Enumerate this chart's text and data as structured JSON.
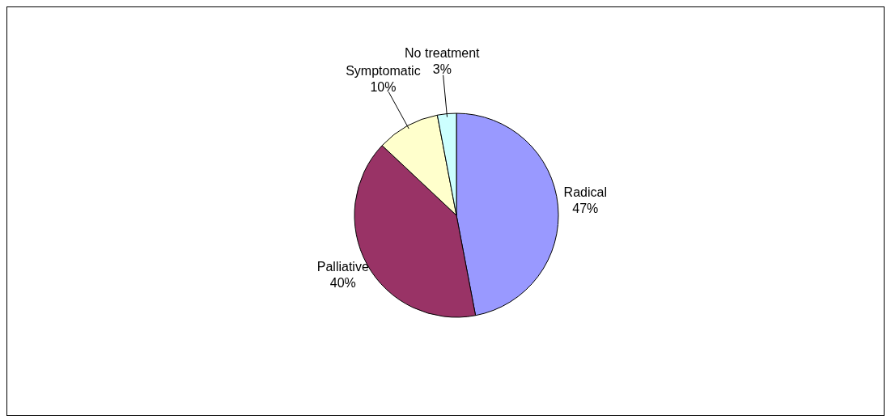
{
  "chart_data": {
    "type": "pie",
    "categories": [
      "Radical",
      "Palliative",
      "Symptomatic",
      "No treatment"
    ],
    "values": [
      47,
      40,
      10,
      3
    ],
    "value_labels": [
      "47%",
      "40%",
      "10%",
      "3%"
    ],
    "colors": [
      "#9999ff",
      "#993366",
      "#ffffcc",
      "#ccffff"
    ],
    "legend": false
  }
}
